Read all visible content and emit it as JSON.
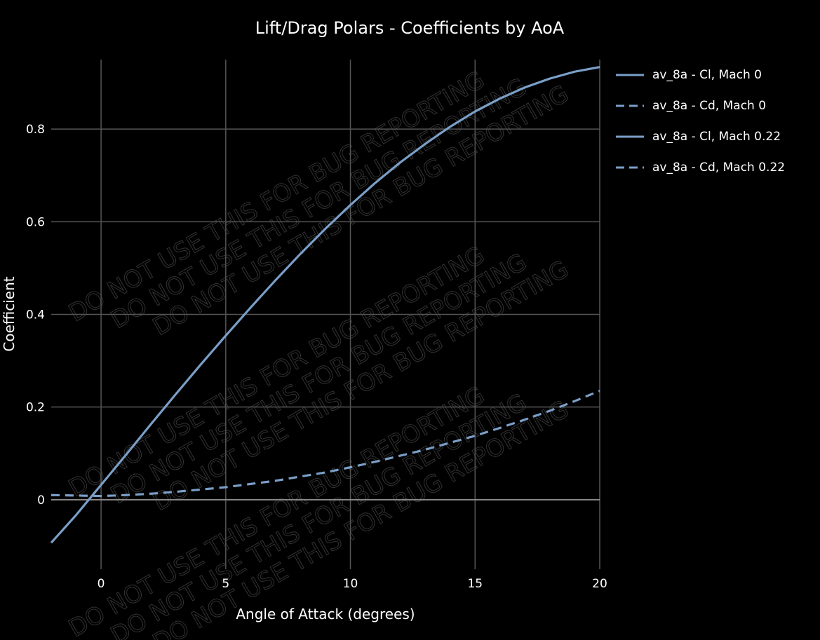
{
  "chart_data": {
    "type": "line",
    "title": "Lift/Drag Polars - Coefficients by AoA",
    "xlabel": "Angle of Attack (degrees)",
    "ylabel": "Coefficient",
    "xlim": [
      -2,
      20
    ],
    "ylim": [
      -0.15,
      0.95
    ],
    "xticks": [
      0,
      5,
      10,
      15,
      20
    ],
    "xtick_labels": [
      "0",
      "5",
      "10",
      "15",
      "20"
    ],
    "yticks": [
      0,
      0.2,
      0.4,
      0.6,
      0.8
    ],
    "ytick_labels": [
      "0",
      "0.2",
      "0.4",
      "0.6",
      "0.8"
    ],
    "grid": true,
    "legend_position": "right",
    "watermark": "DO NOT USE THIS FOR BUG REPORTING",
    "line_color": "#7a9fc8",
    "grid_color": "#555555",
    "zero_line_color": "#8a8a8a",
    "series": [
      {
        "name": "av_8a - Cl, Mach 0",
        "style": "solid",
        "x": [
          -2,
          -1,
          0,
          1,
          2,
          3,
          4,
          5,
          6,
          7,
          8,
          9,
          10,
          11,
          12,
          13,
          14,
          15,
          16,
          17,
          18,
          19,
          20
        ],
        "y": [
          -0.093,
          -0.033,
          0.032,
          0.097,
          0.163,
          0.228,
          0.292,
          0.354,
          0.415,
          0.474,
          0.531,
          0.585,
          0.636,
          0.684,
          0.728,
          0.768,
          0.805,
          0.838,
          0.866,
          0.89,
          0.909,
          0.924,
          0.934
        ]
      },
      {
        "name": "av_8a - Cd, Mach 0",
        "style": "dash",
        "x": [
          -2,
          -1,
          0,
          1,
          2,
          3,
          4,
          5,
          6,
          7,
          8,
          9,
          10,
          11,
          12,
          13,
          14,
          15,
          16,
          17,
          18,
          19,
          20
        ],
        "y": [
          0.01,
          0.009,
          0.008,
          0.01,
          0.013,
          0.017,
          0.022,
          0.027,
          0.034,
          0.041,
          0.05,
          0.059,
          0.07,
          0.082,
          0.095,
          0.108,
          0.123,
          0.138,
          0.155,
          0.173,
          0.192,
          0.213,
          0.235
        ]
      },
      {
        "name": "av_8a - Cl, Mach 0.22",
        "style": "solid",
        "x": [
          -2,
          -1,
          0,
          1,
          2,
          3,
          4,
          5,
          6,
          7,
          8,
          9,
          10,
          11,
          12,
          13,
          14,
          15,
          16,
          17,
          18,
          19,
          20
        ],
        "y": [
          -0.093,
          -0.033,
          0.032,
          0.097,
          0.163,
          0.228,
          0.292,
          0.354,
          0.415,
          0.474,
          0.531,
          0.585,
          0.636,
          0.684,
          0.728,
          0.768,
          0.805,
          0.838,
          0.866,
          0.89,
          0.909,
          0.924,
          0.934
        ]
      },
      {
        "name": "av_8a - Cd, Mach 0.22",
        "style": "dash",
        "x": [
          -2,
          -1,
          0,
          1,
          2,
          3,
          4,
          5,
          6,
          7,
          8,
          9,
          10,
          11,
          12,
          13,
          14,
          15,
          16,
          17,
          18,
          19,
          20
        ],
        "y": [
          0.01,
          0.009,
          0.008,
          0.01,
          0.013,
          0.017,
          0.022,
          0.027,
          0.034,
          0.041,
          0.05,
          0.059,
          0.07,
          0.082,
          0.095,
          0.108,
          0.123,
          0.138,
          0.155,
          0.173,
          0.192,
          0.213,
          0.235
        ]
      }
    ]
  }
}
